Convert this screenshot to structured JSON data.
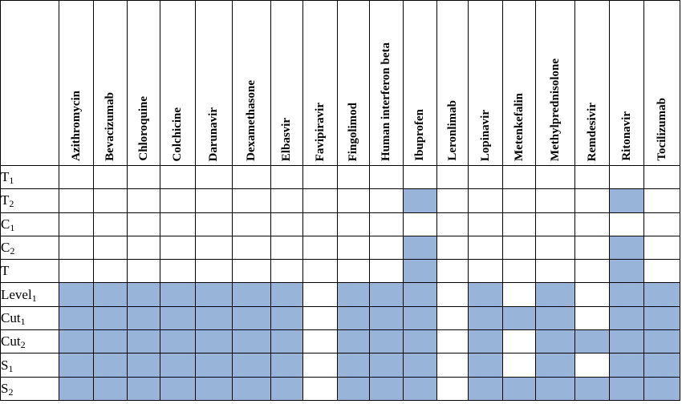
{
  "drugs": [
    "Azithromycin",
    "Bevacizumab",
    "Chloroquine",
    "Colchicine",
    "Darunavir",
    "Dexamethasone",
    "Elbasvir",
    "Favipiravir",
    "Fingolimod",
    "Human interferon beta",
    "Ibuprofen",
    "Leronlimab",
    "Lopinavir",
    "Metenkefalin",
    "Methylprednisolone",
    "Remdesivir",
    "Ritonavir",
    "Tocilizumab"
  ],
  "rows": [
    {
      "base": "T",
      "sub": "1",
      "cells": [
        0,
        0,
        0,
        0,
        0,
        0,
        0,
        0,
        0,
        0,
        0,
        0,
        0,
        0,
        0,
        0,
        0,
        0
      ]
    },
    {
      "base": "T",
      "sub": "2",
      "cells": [
        0,
        0,
        0,
        0,
        0,
        0,
        0,
        0,
        0,
        0,
        1,
        0,
        0,
        0,
        0,
        0,
        1,
        0
      ]
    },
    {
      "base": "C",
      "sub": "1",
      "cells": [
        0,
        0,
        0,
        0,
        0,
        0,
        0,
        0,
        0,
        0,
        0,
        0,
        0,
        0,
        0,
        0,
        0,
        0
      ]
    },
    {
      "base": "C",
      "sub": "2",
      "cells": [
        0,
        0,
        0,
        0,
        0,
        0,
        0,
        0,
        0,
        0,
        1,
        0,
        0,
        0,
        0,
        0,
        1,
        0
      ]
    },
    {
      "base": "T",
      "sub": "",
      "cells": [
        0,
        0,
        0,
        0,
        0,
        0,
        0,
        0,
        0,
        0,
        1,
        0,
        0,
        0,
        0,
        0,
        1,
        0
      ]
    },
    {
      "base": "Level",
      "sub": "1",
      "cells": [
        1,
        1,
        1,
        1,
        1,
        1,
        1,
        0,
        1,
        1,
        1,
        0,
        1,
        0,
        1,
        0,
        1,
        1
      ]
    },
    {
      "base": "Cut",
      "sub": "1",
      "cells": [
        1,
        1,
        1,
        1,
        1,
        1,
        1,
        0,
        1,
        1,
        1,
        0,
        1,
        1,
        1,
        0,
        1,
        1
      ]
    },
    {
      "base": "Cut",
      "sub": "2",
      "cells": [
        1,
        1,
        1,
        1,
        1,
        1,
        1,
        0,
        1,
        1,
        1,
        0,
        1,
        0,
        1,
        1,
        1,
        1
      ]
    },
    {
      "base": "S",
      "sub": "1",
      "cells": [
        1,
        1,
        1,
        1,
        1,
        1,
        1,
        0,
        1,
        1,
        1,
        0,
        1,
        0,
        1,
        0,
        1,
        1
      ]
    },
    {
      "base": "S",
      "sub": "2",
      "cells": [
        1,
        1,
        1,
        1,
        1,
        1,
        1,
        0,
        1,
        1,
        1,
        0,
        1,
        1,
        1,
        1,
        1,
        1
      ]
    }
  ],
  "colors": {
    "filled": "#98b4d8",
    "empty": "#ffffff",
    "border": "#000000"
  }
}
